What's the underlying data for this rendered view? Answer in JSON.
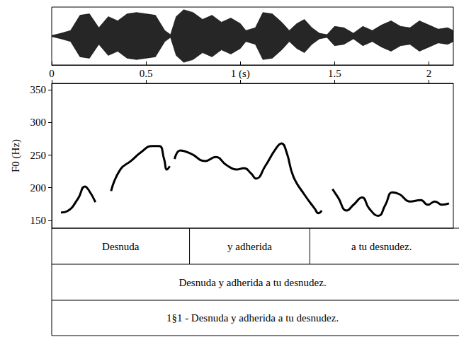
{
  "chart_data": {
    "type": "line",
    "ylabel": "F0 (Hz)",
    "color": "#000000",
    "grid": false,
    "xlim": [
      0,
      2.13
    ],
    "xticks": [
      0,
      0.5,
      {
        "value": 1,
        "label": "1 (s)"
      },
      1.5,
      2
    ],
    "ylim": [
      138,
      360
    ],
    "yticks": [
      150,
      200,
      250,
      300,
      350
    ],
    "x": [
      0.049,
      0.082,
      0.139,
      0.176,
      0.195,
      0.232,
      0.27,
      0.315,
      0.364,
      0.42,
      0.476,
      0.532,
      0.57,
      0.596,
      0.611,
      0.626,
      0.64,
      0.652,
      0.682,
      0.739,
      0.814,
      0.87,
      0.926,
      0.982,
      1.02,
      1.057,
      1.084,
      1.132,
      1.189,
      1.219,
      1.245,
      1.282,
      1.339,
      1.395,
      1.414,
      1.432,
      1.46,
      1.489,
      1.519,
      1.564,
      1.601,
      1.646,
      1.684,
      1.732,
      1.77,
      1.807,
      1.845,
      1.901,
      1.957,
      1.995,
      2.032,
      2.07,
      2.107
    ],
    "values": [
      162,
      164,
      183,
      202,
      197,
      178,
      null,
      195,
      228,
      241,
      255,
      264,
      264,
      244,
      228,
      233,
      null,
      244,
      257,
      252,
      241,
      247,
      235,
      228,
      230,
      222,
      214,
      233,
      260,
      268,
      255,
      217,
      190,
      168,
      161,
      165,
      null,
      198,
      185,
      165,
      174,
      185,
      168,
      157,
      174,
      193,
      190,
      179,
      181,
      174,
      179,
      174,
      176
    ],
    "waveform": {
      "color": "#000000",
      "x": [
        0,
        0.05,
        0.1,
        0.15,
        0.2,
        0.25,
        0.3,
        0.35,
        0.4,
        0.45,
        0.5,
        0.55,
        0.6,
        0.63,
        0.66,
        0.7,
        0.75,
        0.8,
        0.85,
        0.9,
        0.95,
        1.0,
        1.03,
        1.08,
        1.12,
        1.17,
        1.22,
        1.26,
        1.3,
        1.34,
        1.38,
        1.42,
        1.46,
        1.5,
        1.55,
        1.6,
        1.65,
        1.7,
        1.75,
        1.8,
        1.85,
        1.9,
        1.95,
        2.0,
        2.05,
        2.1,
        2.13
      ],
      "amplitude": [
        0.02,
        0.1,
        0.2,
        0.75,
        0.8,
        0.3,
        0.7,
        0.55,
        0.8,
        0.85,
        0.8,
        0.75,
        0.2,
        0.05,
        0.7,
        0.95,
        0.85,
        0.6,
        0.75,
        0.5,
        0.65,
        0.45,
        0.2,
        0.3,
        0.85,
        0.8,
        0.5,
        0.2,
        0.45,
        0.6,
        0.3,
        0.1,
        0.05,
        0.35,
        0.3,
        0.1,
        0.35,
        0.2,
        0.4,
        0.55,
        0.35,
        0.3,
        0.55,
        0.4,
        0.25,
        0.3,
        0.2
      ]
    },
    "tiers": [
      [
        {
          "start": 0,
          "end": 0.731,
          "text": "Desnuda"
        },
        {
          "start": 0.731,
          "end": 1.369,
          "text": "y adherida"
        },
        {
          "start": 1.369,
          "end": 2.13,
          "text": "a tu desnudez."
        }
      ],
      [
        {
          "start": 0,
          "end": 2.13,
          "text": "Desnuda y adherida a tu desnudez."
        }
      ],
      [
        {
          "start": 0,
          "end": 2.13,
          "text": "1§1 - Desnuda y adherida a tu desnudez."
        }
      ]
    ]
  }
}
